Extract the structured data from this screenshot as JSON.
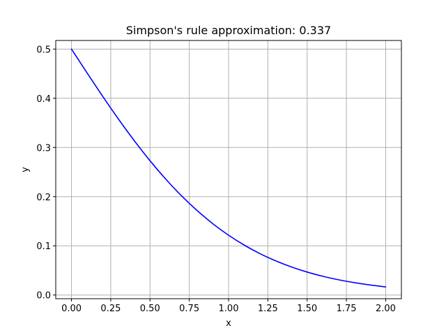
{
  "chart_data": {
    "type": "line",
    "title": "Simpson's rule approximation: 0.337",
    "xlabel": "x",
    "ylabel": "y",
    "xlim": [
      -0.1,
      2.1
    ],
    "ylim": [
      -0.0075,
      0.5175
    ],
    "xticks": [
      0.0,
      0.25,
      0.5,
      0.75,
      1.0,
      1.25,
      1.5,
      1.75,
      2.0
    ],
    "xtick_labels": [
      "0.00",
      "0.25",
      "0.50",
      "0.75",
      "1.00",
      "1.25",
      "1.50",
      "1.75",
      "2.00"
    ],
    "yticks": [
      0.0,
      0.1,
      0.2,
      0.3,
      0.4,
      0.5
    ],
    "ytick_labels": [
      "0.0",
      "0.1",
      "0.2",
      "0.3",
      "0.4",
      "0.5"
    ],
    "grid": true,
    "series": [
      {
        "color": "#0000ff",
        "x": [
          0.0,
          0.1,
          0.2,
          0.3,
          0.4,
          0.5,
          0.6,
          0.7,
          0.8,
          0.9,
          1.0,
          1.1,
          1.2,
          1.3,
          1.4,
          1.5,
          1.6,
          1.7,
          1.8,
          1.9,
          2.0
        ],
        "y": [
          0.5,
          0.4513,
          0.4034,
          0.3573,
          0.3137,
          0.273,
          0.2357,
          0.2018,
          0.1716,
          0.1449,
          0.1216,
          0.1014,
          0.0841,
          0.0695,
          0.0571,
          0.0467,
          0.0381,
          0.031,
          0.0252,
          0.0204,
          0.0165
        ]
      }
    ]
  }
}
